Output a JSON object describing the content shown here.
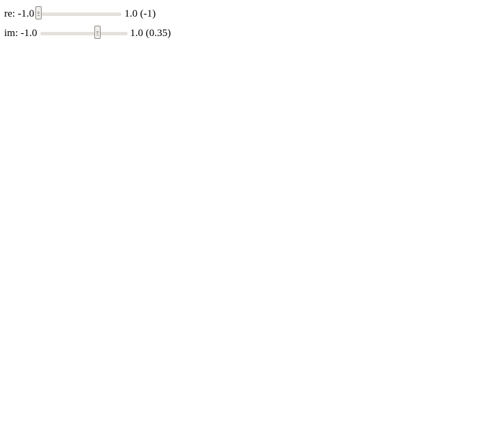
{
  "sliders": {
    "re": {
      "label": "re:",
      "min_label": "-1.0",
      "max_label": "1.0",
      "current_label": "(-1)",
      "min": -1.0,
      "max": 1.0,
      "value": -1.0
    },
    "im": {
      "label": "im:",
      "min_label": "-1.0",
      "max_label": "1.0",
      "current_label": "(0.35)",
      "min": -1.0,
      "max": 1.0,
      "value": 0.35
    }
  },
  "fractal": {
    "type": "Julia set",
    "c_re": -1.0,
    "c_im": 0.35,
    "fill_color": "#000000",
    "background": "#ffffff"
  }
}
